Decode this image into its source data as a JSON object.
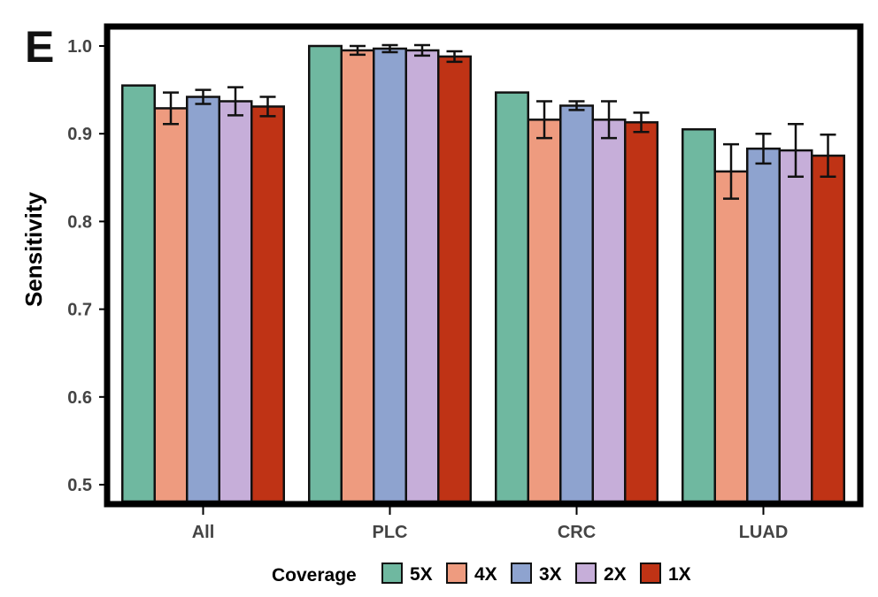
{
  "chart_data": {
    "type": "bar",
    "panel_label": "E",
    "title": "",
    "xlabel": "",
    "ylabel": "Sensitivity",
    "ylim": [
      0.5,
      1.0
    ],
    "yticks": [
      "0.5",
      "0.6",
      "0.7",
      "0.8",
      "0.9",
      "1.0"
    ],
    "categories": [
      "All",
      "PLC",
      "CRC",
      "LUAD"
    ],
    "legend_title": "Coverage",
    "legend_position": "bottom",
    "error_bars": true,
    "series": [
      {
        "name": "5X",
        "color": "#6fb8a0",
        "values": [
          0.955,
          1.0,
          0.947,
          0.905
        ],
        "errors": [
          null,
          null,
          null,
          null
        ]
      },
      {
        "name": "4X",
        "color": "#ee9b7f",
        "values": [
          0.929,
          0.995,
          0.916,
          0.857
        ],
        "errors": [
          0.018,
          0.005,
          0.021,
          0.031
        ]
      },
      {
        "name": "3X",
        "color": "#8ea3cf",
        "values": [
          0.942,
          0.997,
          0.932,
          0.883
        ],
        "errors": [
          0.008,
          0.004,
          0.005,
          0.017
        ]
      },
      {
        "name": "2X",
        "color": "#c6aed9",
        "values": [
          0.937,
          0.995,
          0.916,
          0.881
        ],
        "errors": [
          0.016,
          0.006,
          0.021,
          0.03
        ]
      },
      {
        "name": "1X",
        "color": "#bf3315",
        "values": [
          0.931,
          0.988,
          0.913,
          0.875
        ],
        "errors": [
          0.011,
          0.006,
          0.011,
          0.024
        ]
      }
    ]
  }
}
